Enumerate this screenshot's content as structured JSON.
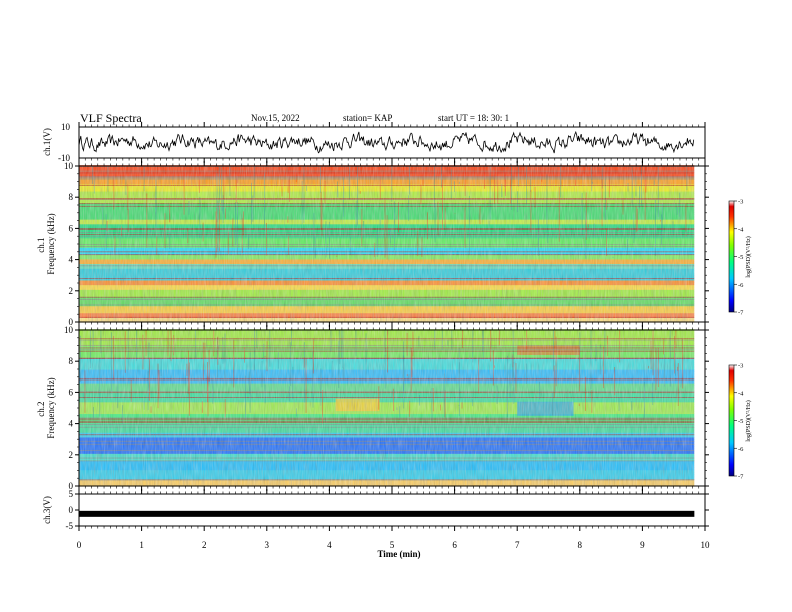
{
  "header": {
    "title": "VLF Spectra",
    "date": "Nov.15, 2022",
    "station": "station= KAP",
    "start": "start  UT =   18: 30: 1"
  },
  "chart_data": [
    {
      "type": "line",
      "panel": "ch1-waveform",
      "ylabel": "ch.1(V)",
      "ylim": [
        -10,
        10
      ],
      "yticks": [
        "10",
        "-10"
      ],
      "xlim": [
        0,
        10
      ],
      "x_end": 9.83
    },
    {
      "type": "heatmap",
      "panel": "ch1-spectrogram",
      "ylabel": "ch.1\nFrequency (kHz)",
      "ylabel_line1": "ch.1",
      "ylabel_line2": "Frequency (kHz)",
      "ylim": [
        0,
        10
      ],
      "yticks": [
        "0",
        "2",
        "4",
        "6",
        "8",
        "10"
      ],
      "xlim": [
        0,
        10
      ],
      "x_end": 9.83,
      "colorbar": {
        "label": "log(PSD)(V²/Hz)",
        "range": [
          -7,
          -3
        ],
        "ticks": [
          "-3",
          "-4",
          "-5",
          "-6",
          "-7"
        ]
      }
    },
    {
      "type": "heatmap",
      "panel": "ch2-spectrogram",
      "ylabel": "ch.2\nFrequency (kHz)",
      "ylabel_line1": "ch.2",
      "ylabel_line2": "Frequency (kHz)",
      "ylim": [
        0,
        10
      ],
      "yticks": [
        "0",
        "2",
        "4",
        "6",
        "8",
        "10"
      ],
      "xlim": [
        0,
        10
      ],
      "x_end": 9.83,
      "colorbar": {
        "label": "log(PSD)(V²/Hz)",
        "range": [
          -7,
          -3
        ],
        "ticks": [
          "-3",
          "-4",
          "-5",
          "-6",
          "-7"
        ]
      }
    },
    {
      "type": "line",
      "panel": "ch3-waveform",
      "ylabel": "ch.3(V)",
      "ylim": [
        -5,
        5
      ],
      "yticks": [
        "5",
        "0",
        "-5"
      ],
      "level": -1.2,
      "xlim": [
        0,
        10
      ],
      "x_end": 9.83,
      "xlabel": "Time  (min)",
      "xticks": [
        "0",
        "1",
        "2",
        "3",
        "4",
        "5",
        "6",
        "7",
        "8",
        "9",
        "10"
      ]
    }
  ]
}
